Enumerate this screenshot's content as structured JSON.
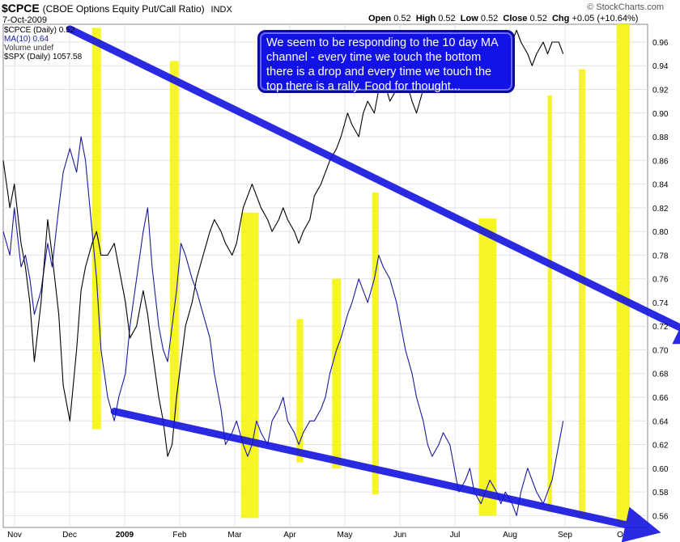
{
  "header": {
    "symbol": "$CPCE",
    "description": "(CBOE Options Equity Put/Call Ratio)",
    "exchange": "INDX",
    "date": "7-Oct-2009",
    "open_label": "Open",
    "open": "0.52",
    "high_label": "High",
    "high": "0.52",
    "low_label": "Low",
    "low": "0.52",
    "close_label": "Close",
    "close": "0.52",
    "chg_label": "Chg",
    "chg": "+0.05 (+10.64%)",
    "brand": "© StockCharts.com"
  },
  "legend": {
    "cpce": "$CPCE (Daily) 0.52",
    "ma": "MA(10) 0.64",
    "volume": "Volume undef",
    "spx": "$SPX (Daily) 1057.58"
  },
  "annotation": {
    "text": "We seem to be responding to the 10 day MA channel - every time we touch the bottom there is a drop and every time we touch the top there is a rally. Food for thought..."
  },
  "colors": {
    "ma_line": "#1a1aa0",
    "spx_line": "#000000",
    "highlight": "#f5f500",
    "trend_arrow": "#1414e0",
    "annotation_bg": "#1212e6"
  },
  "chart_data": {
    "type": "line",
    "x_tick_labels": [
      "Nov",
      "Dec",
      "2009",
      "Feb",
      "Mar",
      "Apr",
      "May",
      "Jun",
      "Jul",
      "Aug",
      "Sep",
      "O"
    ],
    "y_axis": {
      "position": "right",
      "ylim": [
        0.55,
        0.975
      ],
      "ticks": [
        0.56,
        0.58,
        0.6,
        0.62,
        0.64,
        0.66,
        0.68,
        0.7,
        0.72,
        0.74,
        0.76,
        0.78,
        0.8,
        0.82,
        0.84,
        0.86,
        0.88,
        0.9,
        0.92,
        0.94,
        0.96
      ]
    },
    "grid": true,
    "series": [
      {
        "name": "MA(10)",
        "color": "#1a1aa0",
        "x": [
          0,
          3,
          5,
          8,
          10,
          12,
          14,
          17,
          20,
          22,
          25,
          27,
          30,
          33,
          35,
          37,
          40,
          42,
          44,
          47,
          50,
          52,
          55,
          57,
          60,
          63,
          65,
          67,
          70,
          72,
          74,
          76,
          78,
          80,
          82,
          85,
          87,
          90,
          93,
          95,
          98,
          100,
          103,
          105,
          108,
          110,
          112,
          114,
          116,
          119,
          121,
          124,
          126,
          128,
          131,
          133,
          135,
          138,
          140,
          143,
          145,
          147,
          150,
          152,
          155,
          157,
          160,
          162,
          164,
          167,
          169,
          171,
          174,
          177,
          179,
          181,
          184,
          186,
          189,
          191,
          193,
          196,
          198,
          201,
          203,
          205,
          208,
          210,
          212,
          215,
          217,
          219,
          222,
          224,
          226,
          229,
          231,
          233,
          236,
          238,
          240,
          243,
          245,
          247,
          250,
          252
        ],
        "values": [
          0.8,
          0.78,
          0.82,
          0.77,
          0.78,
          0.76,
          0.73,
          0.75,
          0.79,
          0.77,
          0.82,
          0.85,
          0.87,
          0.85,
          0.88,
          0.86,
          0.8,
          0.76,
          0.7,
          0.66,
          0.64,
          0.66,
          0.68,
          0.72,
          0.76,
          0.8,
          0.82,
          0.77,
          0.72,
          0.7,
          0.69,
          0.72,
          0.75,
          0.79,
          0.78,
          0.76,
          0.75,
          0.73,
          0.71,
          0.68,
          0.65,
          0.62,
          0.63,
          0.64,
          0.62,
          0.61,
          0.62,
          0.64,
          0.63,
          0.62,
          0.64,
          0.65,
          0.66,
          0.64,
          0.63,
          0.62,
          0.63,
          0.64,
          0.64,
          0.65,
          0.66,
          0.68,
          0.7,
          0.71,
          0.73,
          0.74,
          0.76,
          0.75,
          0.74,
          0.76,
          0.78,
          0.77,
          0.76,
          0.74,
          0.72,
          0.7,
          0.68,
          0.66,
          0.64,
          0.62,
          0.61,
          0.62,
          0.63,
          0.62,
          0.6,
          0.58,
          0.59,
          0.6,
          0.58,
          0.57,
          0.58,
          0.59,
          0.58,
          0.57,
          0.58,
          0.57,
          0.56,
          0.58,
          0.6,
          0.59,
          0.58,
          0.57,
          0.58,
          0.59,
          0.62,
          0.64
        ]
      },
      {
        "name": "$SPX",
        "color": "#000000",
        "x": [
          0,
          3,
          5,
          8,
          10,
          12,
          14,
          17,
          20,
          22,
          25,
          27,
          30,
          33,
          35,
          37,
          40,
          42,
          44,
          47,
          50,
          52,
          55,
          57,
          60,
          63,
          65,
          67,
          70,
          72,
          74,
          76,
          78,
          80,
          82,
          85,
          87,
          90,
          93,
          95,
          98,
          100,
          103,
          105,
          108,
          110,
          112,
          114,
          116,
          119,
          121,
          124,
          126,
          128,
          131,
          133,
          135,
          138,
          140,
          143,
          145,
          147,
          150,
          152,
          155,
          157,
          160,
          162,
          164,
          167,
          169,
          171,
          174,
          177,
          179,
          181,
          184,
          186,
          189,
          191,
          193,
          196,
          198,
          201,
          203,
          205,
          208,
          210,
          212,
          215,
          217,
          219,
          222,
          224,
          226,
          229,
          231,
          233,
          236,
          238,
          240,
          243,
          245,
          247,
          250,
          252
        ],
        "values": [
          0.86,
          0.82,
          0.84,
          0.79,
          0.77,
          0.74,
          0.69,
          0.74,
          0.81,
          0.78,
          0.73,
          0.67,
          0.64,
          0.7,
          0.75,
          0.77,
          0.79,
          0.8,
          0.78,
          0.78,
          0.79,
          0.77,
          0.74,
          0.71,
          0.72,
          0.75,
          0.73,
          0.7,
          0.66,
          0.64,
          0.61,
          0.62,
          0.66,
          0.69,
          0.72,
          0.74,
          0.76,
          0.78,
          0.8,
          0.81,
          0.8,
          0.79,
          0.78,
          0.79,
          0.82,
          0.83,
          0.84,
          0.83,
          0.82,
          0.81,
          0.8,
          0.81,
          0.82,
          0.81,
          0.8,
          0.79,
          0.8,
          0.81,
          0.83,
          0.84,
          0.85,
          0.86,
          0.87,
          0.88,
          0.9,
          0.89,
          0.88,
          0.9,
          0.91,
          0.9,
          0.92,
          0.93,
          0.91,
          0.92,
          0.94,
          0.93,
          0.91,
          0.9,
          0.92,
          0.93,
          0.95,
          0.94,
          0.93,
          0.92,
          0.94,
          0.95,
          0.96,
          0.95,
          0.94,
          0.93,
          0.95,
          0.96,
          0.97,
          0.96,
          0.95,
          0.96,
          0.97,
          0.96,
          0.95,
          0.94,
          0.95,
          0.96,
          0.95,
          0.96,
          0.96,
          0.95
        ]
      }
    ],
    "highlight_bands": [
      {
        "x0": 40,
        "x1": 44,
        "ylow": 0.633,
        "yhigh": 0.972
      },
      {
        "x0": 75,
        "x1": 79,
        "ylow": 0.64,
        "yhigh": 0.944
      },
      {
        "x0": 107,
        "x1": 115,
        "ylow": 0.558,
        "yhigh": 0.816
      },
      {
        "x0": 132,
        "x1": 135,
        "ylow": 0.605,
        "yhigh": 0.726
      },
      {
        "x0": 148,
        "x1": 152,
        "ylow": 0.6,
        "yhigh": 0.76
      },
      {
        "x0": 166,
        "x1": 169,
        "ylow": 0.578,
        "yhigh": 0.833
      },
      {
        "x0": 214,
        "x1": 222,
        "ylow": 0.56,
        "yhigh": 0.811
      },
      {
        "x0": 245,
        "x1": 247,
        "ylow": 0.563,
        "yhigh": 0.915
      },
      {
        "x0": 259,
        "x1": 262,
        "ylow": 0.558,
        "yhigh": 0.937
      },
      {
        "x0": 276,
        "x1": 282,
        "ylow": 0.553,
        "yhigh": 0.975
      }
    ],
    "trend_arrows": [
      {
        "x0": 30,
        "y0": 0.971,
        "x1": 312,
        "y1": 0.712
      },
      {
        "x0": 50,
        "y0": 0.648,
        "x1": 288,
        "y1": 0.549
      }
    ]
  }
}
